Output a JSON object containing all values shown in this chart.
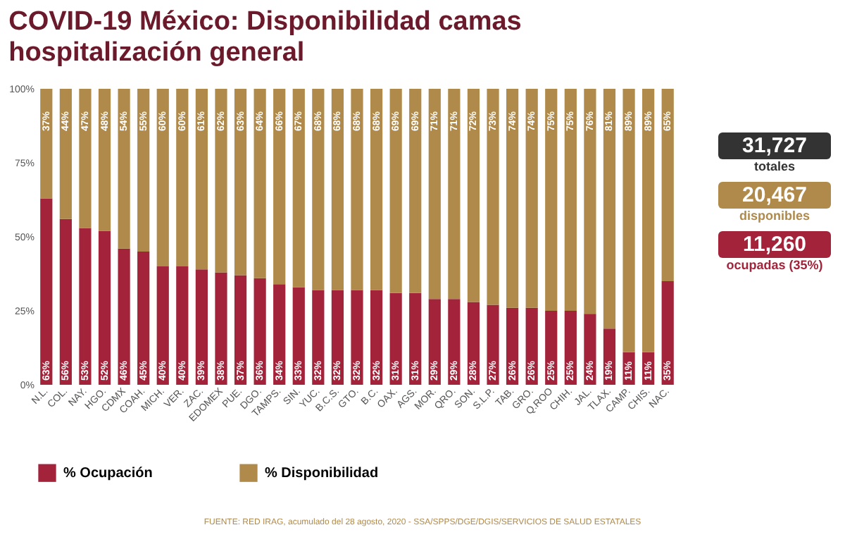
{
  "chart_data": {
    "type": "bar",
    "title": "COVID-19 México: Disponibilidad camas hospitalización general",
    "categories": [
      "N.L.",
      "COL.",
      "NAY.",
      "HGO.",
      "CDMX",
      "COAH.",
      "MICH.",
      "VER.",
      "ZAC.",
      "EDOMEX",
      "PUE.",
      "DGO.",
      "TAMPS.",
      "SIN.",
      "YUC.",
      "B.C.S.",
      "GTO.",
      "B.C.",
      "OAX.",
      "AGS.",
      "MOR.",
      "QRO.",
      "SON.",
      "S.L.P.",
      "TAB.",
      "GRO.",
      "Q.ROO",
      "CHIH.",
      "JAL.",
      "TLAX.",
      "CAMP.",
      "CHIS.",
      "NAC."
    ],
    "stacked": true,
    "series": [
      {
        "name": "% Ocupación",
        "color": "#a3233b",
        "values": [
          63,
          56,
          53,
          52,
          46,
          45,
          40,
          40,
          39,
          38,
          37,
          36,
          34,
          33,
          32,
          32,
          32,
          32,
          31,
          31,
          29,
          29,
          28,
          27,
          26,
          26,
          25,
          25,
          24,
          19,
          11,
          11,
          35
        ],
        "value_labels": [
          "63%",
          "56%",
          "53%",
          "52%",
          "46%",
          "45%",
          "40%",
          "40%",
          "39%",
          "38%",
          "37%",
          "36%",
          "34%",
          "33%",
          "32%",
          "32%",
          "32%",
          "32%",
          "31%",
          "31%",
          "29%",
          "29%",
          "28%",
          "27%",
          "26%",
          "26%",
          "25%",
          "25%",
          "24%",
          "19%",
          "11%",
          "11%",
          "35%"
        ]
      },
      {
        "name": "% Disponibilidad",
        "color": "#b08a4a",
        "values": [
          37,
          44,
          47,
          48,
          54,
          55,
          60,
          60,
          61,
          62,
          63,
          64,
          66,
          67,
          68,
          68,
          68,
          68,
          69,
          69,
          71,
          71,
          72,
          73,
          74,
          74,
          75,
          75,
          76,
          81,
          89,
          89,
          65
        ],
        "value_labels": [
          "37%",
          "44%",
          "47%",
          "48%",
          "54%",
          "55%",
          "60%",
          "60%",
          "61%",
          "62%",
          "63%",
          "64%",
          "66%",
          "67%",
          "68%",
          "68%",
          "68%",
          "68%",
          "69%",
          "69%",
          "71%",
          "71%",
          "72%",
          "73%",
          "74%",
          "74%",
          "75%",
          "75%",
          "76%",
          "81%",
          "89%",
          "89%",
          "65%"
        ]
      }
    ],
    "ylim": [
      0,
      100
    ],
    "yticks": [
      {
        "value": 0,
        "label": "0%"
      },
      {
        "value": 25,
        "label": "25%"
      },
      {
        "value": 50,
        "label": "50%"
      },
      {
        "value": 75,
        "label": "75%"
      },
      {
        "value": 100,
        "label": "100%"
      }
    ],
    "grid": false,
    "legend": "bottom",
    "annotations": [
      "31,727",
      "totales",
      "20,467",
      "disponibles",
      "11,260",
      "ocupadas (35%)",
      "FUENTE: RED IRAG, acumulado del 28 agosto, 2020 - SSA/SPPS/DGE/DGIS/SERVICIOS DE SALUD ESTATALES"
    ]
  }
}
